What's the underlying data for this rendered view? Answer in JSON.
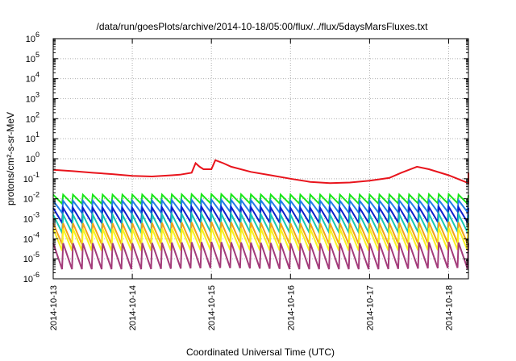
{
  "chart_data": {
    "type": "line",
    "title": "/data/run/goesPlots/archive/2014-10-18/05:00/flux/../flux/5daysMarsFluxes.txt",
    "xlabel": "Coordinated Universal Time (UTC)",
    "ylabel": "protons/cm²-s-sr-MeV",
    "x_ticks": [
      "2014-10-13",
      "2014-10-14",
      "2014-10-15",
      "2014-10-16",
      "2014-10-17",
      "2014-10-18"
    ],
    "y_scale": "log",
    "ylim": [
      1e-06,
      1000000.0
    ],
    "y_tick_exponents": [
      -6,
      -5,
      -4,
      -3,
      -2,
      -1,
      0,
      1,
      2,
      3,
      4,
      5,
      6
    ],
    "y_tick_base": "10",
    "x_range_days": [
      0,
      5.25
    ],
    "grid": true,
    "sawtooth_period_days": 0.125,
    "series": [
      {
        "color": "#e8141c",
        "points": [
          [
            0,
            0.28
          ],
          [
            0.25,
            0.24
          ],
          [
            0.5,
            0.2
          ],
          [
            0.75,
            0.17
          ],
          [
            1.0,
            0.14
          ],
          [
            1.25,
            0.13
          ],
          [
            1.5,
            0.15
          ],
          [
            1.6,
            0.16
          ],
          [
            1.75,
            0.2
          ],
          [
            1.8,
            0.6
          ],
          [
            1.85,
            0.4
          ],
          [
            1.9,
            0.3
          ],
          [
            2.0,
            0.3
          ],
          [
            2.05,
            0.85
          ],
          [
            2.15,
            0.6
          ],
          [
            2.25,
            0.4
          ],
          [
            2.5,
            0.22
          ],
          [
            2.75,
            0.15
          ],
          [
            3.0,
            0.1
          ],
          [
            3.25,
            0.07
          ],
          [
            3.5,
            0.06
          ],
          [
            3.75,
            0.065
          ],
          [
            4.0,
            0.08
          ],
          [
            4.25,
            0.11
          ],
          [
            4.4,
            0.2
          ],
          [
            4.6,
            0.4
          ],
          [
            4.75,
            0.3
          ],
          [
            5.0,
            0.15
          ],
          [
            5.25,
            0.06
          ],
          [
            5.25,
            0.2
          ]
        ]
      },
      {
        "color": "#19e619",
        "points": [
          [
            0,
            0.016
          ],
          [
            1.0,
            0.016
          ],
          [
            2.0,
            0.017
          ],
          [
            3.0,
            0.016
          ],
          [
            4.0,
            0.016
          ],
          [
            5.0,
            0.017
          ],
          [
            5.25,
            0.015
          ]
        ]
      },
      {
        "color": "#1f7fe6",
        "points": [
          [
            0,
            0.008
          ],
          [
            1.0,
            0.008
          ],
          [
            2.0,
            0.009
          ],
          [
            3.0,
            0.008
          ],
          [
            4.0,
            0.008
          ],
          [
            5.0,
            0.009
          ],
          [
            5.25,
            0.008
          ]
        ]
      },
      {
        "color": "#0d1fcc",
        "points": [
          [
            0,
            0.0035
          ],
          [
            1.0,
            0.0035
          ],
          [
            2.0,
            0.004
          ],
          [
            3.0,
            0.0035
          ],
          [
            4.0,
            0.0035
          ],
          [
            5.0,
            0.004
          ],
          [
            5.25,
            0.0035
          ]
        ]
      },
      {
        "color": "#17c7b3",
        "points": [
          [
            0,
            0.0016
          ],
          [
            1.0,
            0.0016
          ],
          [
            2.0,
            0.0018
          ],
          [
            3.0,
            0.0016
          ],
          [
            4.0,
            0.0016
          ],
          [
            5.0,
            0.0018
          ],
          [
            5.25,
            0.0016
          ]
        ]
      },
      {
        "color": "#f2a21a",
        "points": [
          [
            0,
            0.0006
          ],
          [
            1.0,
            0.0006
          ],
          [
            2.0,
            0.0007
          ],
          [
            3.0,
            0.0006
          ],
          [
            4.0,
            0.0006
          ],
          [
            5.0,
            0.0007
          ],
          [
            5.25,
            0.0006
          ]
        ]
      },
      {
        "color": "#f7f21f",
        "points": [
          [
            0,
            0.00032
          ],
          [
            1.0,
            0.00032
          ],
          [
            2.0,
            0.00035
          ],
          [
            3.0,
            0.00032
          ],
          [
            4.0,
            0.00032
          ],
          [
            5.0,
            0.00035
          ],
          [
            5.25,
            0.00032
          ]
        ]
      },
      {
        "color": "#a33b7a",
        "points": [
          [
            0,
            6e-05
          ],
          [
            1.0,
            6e-05
          ],
          [
            2.0,
            7e-05
          ],
          [
            3.0,
            6e-05
          ],
          [
            4.0,
            6e-05
          ],
          [
            5.0,
            7e-05
          ],
          [
            5.25,
            6e-05
          ]
        ]
      }
    ],
    "sawtooth_depth_decades": [
      0,
      0.45,
      0.6,
      0.75,
      0.9,
      1.05,
      1.1,
      1.3
    ]
  }
}
